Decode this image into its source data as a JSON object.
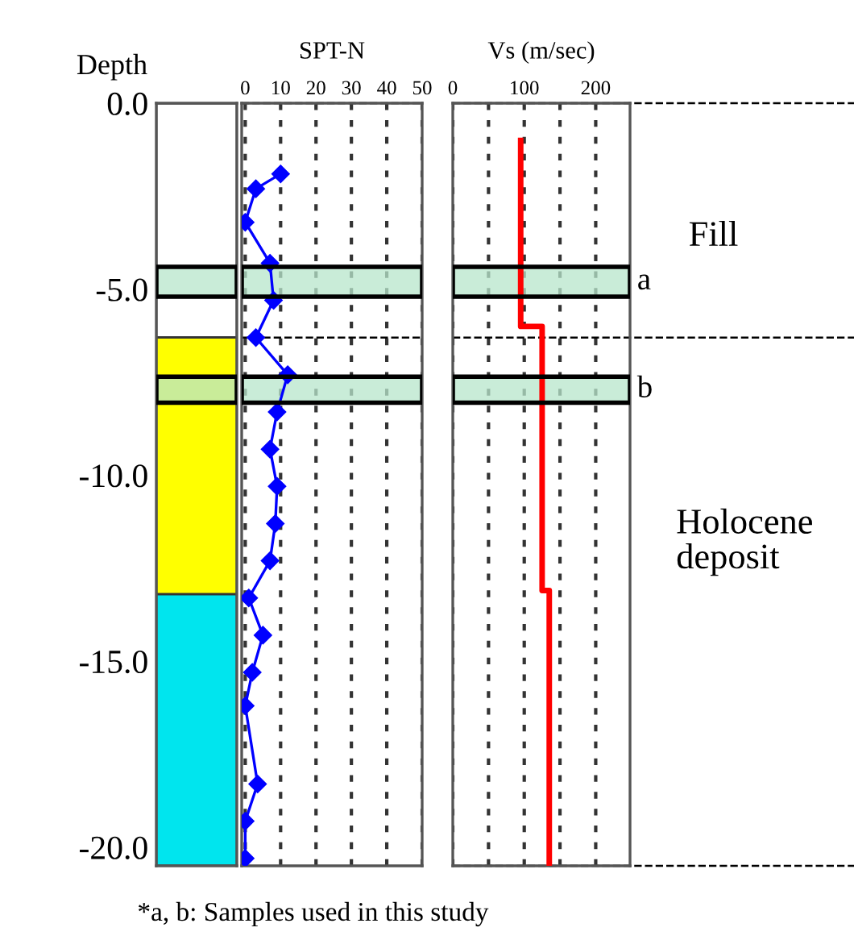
{
  "chart_data": [
    {
      "type": "bar",
      "stacked": true,
      "ylabel": "Depth",
      "categories": [
        null
      ],
      "tick_labels": "y",
      "series": [
        {
          "color": "#ffffff",
          "values": [
            -6.3
          ]
        },
        {
          "color": "#ffff00",
          "values": [
            -6.9
          ]
        },
        {
          "color": "#00e5ee",
          "values": [
            -7.3
          ]
        }
      ],
      "ylim": [
        -20.5,
        0
      ],
      "yticks": [
        {
          "value": 0,
          "label": "0.0"
        },
        {
          "value": -5,
          "label": "-5.0"
        },
        {
          "value": -10,
          "label": "-10.0"
        },
        {
          "value": -15,
          "label": "-15.0"
        },
        {
          "value": -20,
          "label": "-20.0"
        }
      ],
      "bands": [
        {
          "axis": "y",
          "from": -4.4,
          "to": -5.2,
          "color": "#b8e6cc"
        },
        {
          "axis": "y",
          "from": -7.35,
          "to": -8.05,
          "color": "#b8e6cc"
        }
      ]
    },
    {
      "type": "line",
      "orientation": "horizontal",
      "title": "SPT-N",
      "tick_labels": "x",
      "marker": "diamond",
      "line_style": "solid",
      "grid": "x",
      "x": [
        -1.9,
        -2.3,
        -3.2,
        -4.3,
        -5.3,
        -6.3,
        -7.3,
        -8.3,
        -9.3,
        -10.3,
        -11.3,
        -12.3,
        -13.3,
        -14.3,
        -15.3,
        -16.2,
        -18.3,
        -19.3,
        -20.3
      ],
      "series": [
        {
          "color": "#0000ff",
          "values": [
            10,
            3,
            0,
            7,
            8,
            3,
            12,
            9,
            7,
            9,
            8.5,
            7,
            1,
            5,
            2,
            0,
            3.5,
            0,
            0
          ]
        }
      ],
      "xlim": [
        -1,
        50
      ],
      "xticks": [
        0,
        10,
        20,
        30,
        40,
        50
      ],
      "ylim": [
        -20.5,
        0
      ],
      "bands": [
        {
          "axis": "y",
          "from": -4.4,
          "to": -5.2,
          "color": "#b8e6cc"
        },
        {
          "axis": "y",
          "from": -7.35,
          "to": -8.05,
          "color": "#b8e6cc"
        }
      ],
      "ref_lines": [
        {
          "axis": "y",
          "value": 0,
          "line_style": "dashed"
        },
        {
          "axis": "y",
          "value": -6.3,
          "line_style": "dashed"
        }
      ]
    },
    {
      "type": "line",
      "orientation": "horizontal",
      "title": "Vs (m/sec)",
      "tick_labels": "x",
      "marker": "none",
      "line_style": "solid",
      "grid": "x",
      "x": [
        -1.0,
        -6.0,
        -6.0,
        -13.1,
        -13.1,
        -20.5
      ],
      "series": [
        {
          "color": "#ff0000",
          "values": [
            95,
            95,
            125,
            125,
            135,
            135
          ]
        }
      ],
      "xlim": [
        0,
        248
      ],
      "xticks": [
        0,
        {
          "value": 50,
          "label": null
        },
        100,
        {
          "value": 150,
          "label": null
        },
        200
      ],
      "ylim": [
        -20.5,
        0
      ],
      "bands": [
        {
          "axis": "y",
          "from": -4.4,
          "to": -5.2,
          "color": "#b8e6cc",
          "label": "a"
        },
        {
          "axis": "y",
          "from": -7.35,
          "to": -8.05,
          "color": "#b8e6cc",
          "label": "b"
        }
      ],
      "ref_lines": [
        {
          "axis": "y",
          "value": 0,
          "line_style": "dashed"
        },
        {
          "axis": "y",
          "value": -6.3,
          "line_style": "dashed"
        },
        {
          "axis": "y",
          "value": -20.5,
          "line_style": "dashed"
        }
      ],
      "annotations": [
        "Fill",
        "Holocene deposit",
        "*a, b: Samples used in this study"
      ]
    }
  ]
}
